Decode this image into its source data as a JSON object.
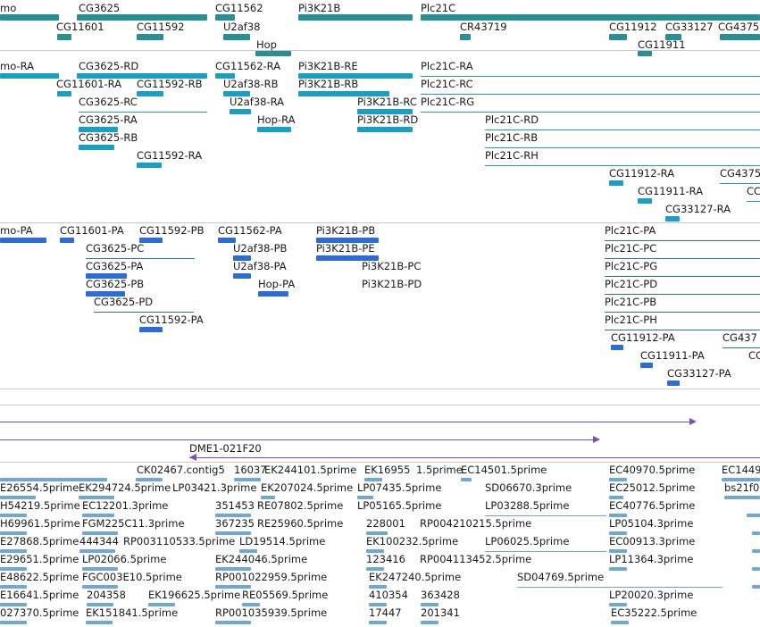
{
  "colors": {
    "gene": "#2a8f92",
    "transcript": "#1b9ec3",
    "protein": "#2b6cd6",
    "clone": "#7b4fb8",
    "est": "#6ea9d6",
    "divider": "#c8c8c8"
  },
  "tracks": {
    "genes": [
      {
        "label": "mo"
      },
      {
        "label": "CG3625"
      },
      {
        "label": "CG11601"
      },
      {
        "label": "CG11592"
      },
      {
        "label": "CG11562"
      },
      {
        "label": "U2af38"
      },
      {
        "label": "Hop"
      },
      {
        "label": "Pi3K21B"
      },
      {
        "label": "Plc21C"
      },
      {
        "label": "CR43719"
      },
      {
        "label": "CG11912"
      },
      {
        "label": "CG33127"
      },
      {
        "label": "CG4375"
      },
      {
        "label": "CG11911"
      }
    ],
    "transcripts": [
      {
        "label": "mo-RA"
      },
      {
        "label": "CG3625-RD"
      },
      {
        "label": "CG11562-RA"
      },
      {
        "label": "Pi3K21B-RE"
      },
      {
        "label": "Plc21C-RA"
      },
      {
        "label": "CG11601-RA"
      },
      {
        "label": "CG11592-RB"
      },
      {
        "label": "U2af38-RB"
      },
      {
        "label": "Pi3K21B-RB"
      },
      {
        "label": "Plc21C-RC"
      },
      {
        "label": "CG3625-RC"
      },
      {
        "label": "U2af38-RA"
      },
      {
        "label": "Pi3K21B-RC"
      },
      {
        "label": "Plc21C-RG"
      },
      {
        "label": "CG3625-RA"
      },
      {
        "label": "Hop-RA"
      },
      {
        "label": "Pi3K21B-RD"
      },
      {
        "label": "Plc21C-RD"
      },
      {
        "label": "CG3625-RB"
      },
      {
        "label": "Plc21C-RB"
      },
      {
        "label": "CG11592-RA"
      },
      {
        "label": "Plc21C-RH"
      },
      {
        "label": "CG11912-RA"
      },
      {
        "label": "CG4375"
      },
      {
        "label": "CG11911-RA"
      },
      {
        "label": "CC"
      },
      {
        "label": "CG33127-RA"
      }
    ],
    "proteins": [
      {
        "label": "mo-PA"
      },
      {
        "label": "CG11601-PA"
      },
      {
        "label": "CG11592-PB"
      },
      {
        "label": "CG11562-PA"
      },
      {
        "label": "Pi3K21B-PB"
      },
      {
        "label": "Plc21C-PA"
      },
      {
        "label": "CG3625-PC"
      },
      {
        "label": "U2af38-PB"
      },
      {
        "label": "Pi3K21B-PE"
      },
      {
        "label": "Plc21C-PC"
      },
      {
        "label": "CG3625-PA"
      },
      {
        "label": "U2af38-PA"
      },
      {
        "label": "Pi3K21B-PC"
      },
      {
        "label": "Plc21C-PG"
      },
      {
        "label": "CG3625-PB"
      },
      {
        "label": "Hop-PA"
      },
      {
        "label": "Pi3K21B-PD"
      },
      {
        "label": "Plc21C-PD"
      },
      {
        "label": "CG3625-PD"
      },
      {
        "label": "Plc21C-PB"
      },
      {
        "label": "CG11592-PA"
      },
      {
        "label": "Plc21C-PH"
      },
      {
        "label": "CG11912-PA"
      },
      {
        "label": "CG437"
      },
      {
        "label": "CG11911-PA"
      },
      {
        "label": "CC"
      },
      {
        "label": "CG33127-PA"
      }
    ],
    "clones": [
      {
        "label": "DME1-021F20"
      }
    ],
    "ests": [
      {
        "label": "CK02467.contig5"
      },
      {
        "label": "16037"
      },
      {
        "label": "EK244101.5prime"
      },
      {
        "label": "EK16955"
      },
      {
        "label": "1.5prime"
      },
      {
        "label": "EC14501.5prime"
      },
      {
        "label": "EC40970.5prime"
      },
      {
        "label": "EC1449"
      },
      {
        "label": "E26554.5prime"
      },
      {
        "label": "EK294724.5prime"
      },
      {
        "label": "LP03421.3prime"
      },
      {
        "label": "EK207024.5prime"
      },
      {
        "label": "LP07435.5prime"
      },
      {
        "label": "SD06670.3prime"
      },
      {
        "label": "EC25012.5prime"
      },
      {
        "label": "bs21f0"
      },
      {
        "label": "H54219.5prime"
      },
      {
        "label": "EC12201.3prime"
      },
      {
        "label": "351453"
      },
      {
        "label": "RE07802.5prime"
      },
      {
        "label": "LP05165.5prime"
      },
      {
        "label": "LP03288.5prime"
      },
      {
        "label": "EC40776.5prime"
      },
      {
        "label": "H69961.5prime"
      },
      {
        "label": "FGM225C11.3prime"
      },
      {
        "label": "367235"
      },
      {
        "label": "RE25960.5prime"
      },
      {
        "label": "228001"
      },
      {
        "label": "RP004210215.5prime"
      },
      {
        "label": "LP05104.3prime"
      },
      {
        "label": "E27868.5prime"
      },
      {
        "label": "444344"
      },
      {
        "label": "RP003110533.5prime"
      },
      {
        "label": "LD19514.5prime"
      },
      {
        "label": "EK100232.5prime"
      },
      {
        "label": "LP06025.5prime"
      },
      {
        "label": "EC00913.3prime"
      },
      {
        "label": "E29651.5prime"
      },
      {
        "label": "LP02066.5prime"
      },
      {
        "label": "EK244046.5prime"
      },
      {
        "label": "123416"
      },
      {
        "label": "RP004113452.5prime"
      },
      {
        "label": "LP11364.3prime"
      },
      {
        "label": "E48622.5prime"
      },
      {
        "label": "FGC003E10.5prime"
      },
      {
        "label": "RP001022959.5prime"
      },
      {
        "label": "EK247240.5prime"
      },
      {
        "label": "SD04769.5prime"
      },
      {
        "label": "E16641.5prime"
      },
      {
        "label": "204358"
      },
      {
        "label": "EK196625.5prime"
      },
      {
        "label": "RE05569.5prime"
      },
      {
        "label": "410354"
      },
      {
        "label": "363428"
      },
      {
        "label": "LP20020.3prime"
      },
      {
        "label": "027370.5prime"
      },
      {
        "label": "EK151841.5prime"
      },
      {
        "label": "RP001035939.5prime"
      },
      {
        "label": "17447"
      },
      {
        "label": "201341"
      },
      {
        "label": "EC35222.5prime"
      }
    ]
  }
}
